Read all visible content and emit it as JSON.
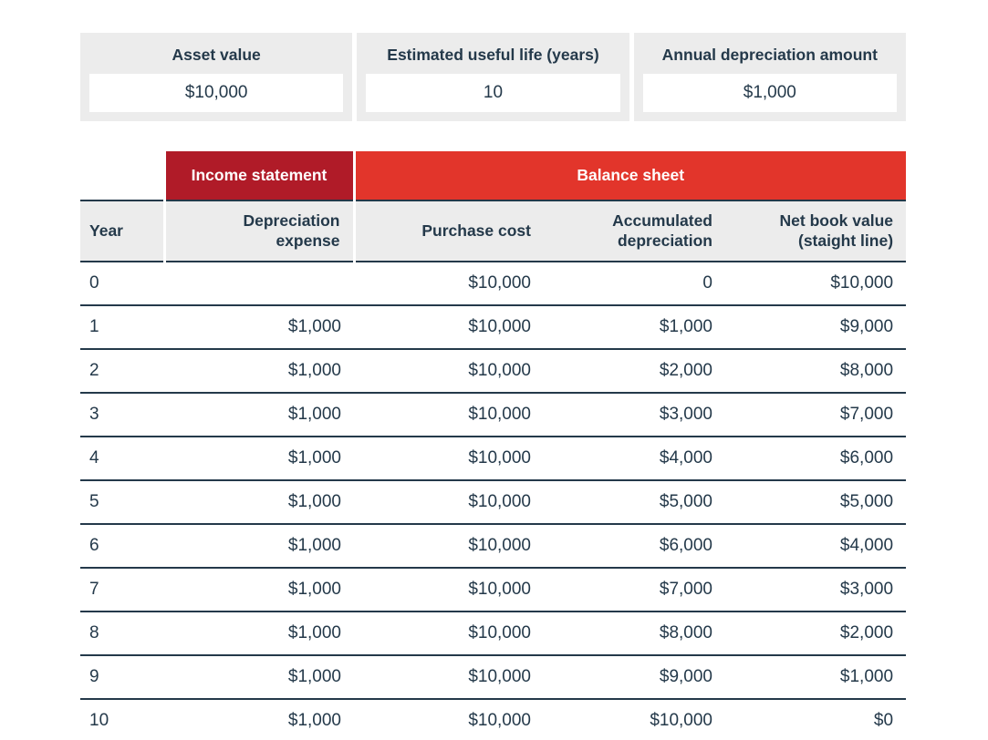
{
  "colors": {
    "income_statement_bar": "#b01b28",
    "balance_sheet_bar": "#e2352b",
    "text_navy": "#24394a",
    "panel_gray": "#ececec"
  },
  "inputs": {
    "asset_value": {
      "label": "Asset value",
      "value": "$10,000"
    },
    "useful_life": {
      "label": "Estimated useful life (years)",
      "value": "10"
    },
    "annual_amount": {
      "label": "Annual depreciation amount",
      "value": "$1,000"
    }
  },
  "table": {
    "group_headers": {
      "income": {
        "label": "Income statement"
      },
      "balance": {
        "label": "Balance sheet"
      }
    },
    "columns": [
      "Year",
      "Depreciation expense",
      "Purchase cost",
      "Accumulated depreciation",
      "Net book value (staight line)"
    ],
    "rows": [
      [
        "0",
        "",
        "$10,000",
        "0",
        "$10,000"
      ],
      [
        "1",
        "$1,000",
        "$10,000",
        "$1,000",
        "$9,000"
      ],
      [
        "2",
        "$1,000",
        "$10,000",
        "$2,000",
        "$8,000"
      ],
      [
        "3",
        "$1,000",
        "$10,000",
        "$3,000",
        "$7,000"
      ],
      [
        "4",
        "$1,000",
        "$10,000",
        "$4,000",
        "$6,000"
      ],
      [
        "5",
        "$1,000",
        "$10,000",
        "$5,000",
        "$5,000"
      ],
      [
        "6",
        "$1,000",
        "$10,000",
        "$6,000",
        "$4,000"
      ],
      [
        "7",
        "$1,000",
        "$10,000",
        "$7,000",
        "$3,000"
      ],
      [
        "8",
        "$1,000",
        "$10,000",
        "$8,000",
        "$2,000"
      ],
      [
        "9",
        "$1,000",
        "$10,000",
        "$9,000",
        "$1,000"
      ],
      [
        "10",
        "$1,000",
        "$10,000",
        "$10,000",
        "$0"
      ]
    ]
  }
}
